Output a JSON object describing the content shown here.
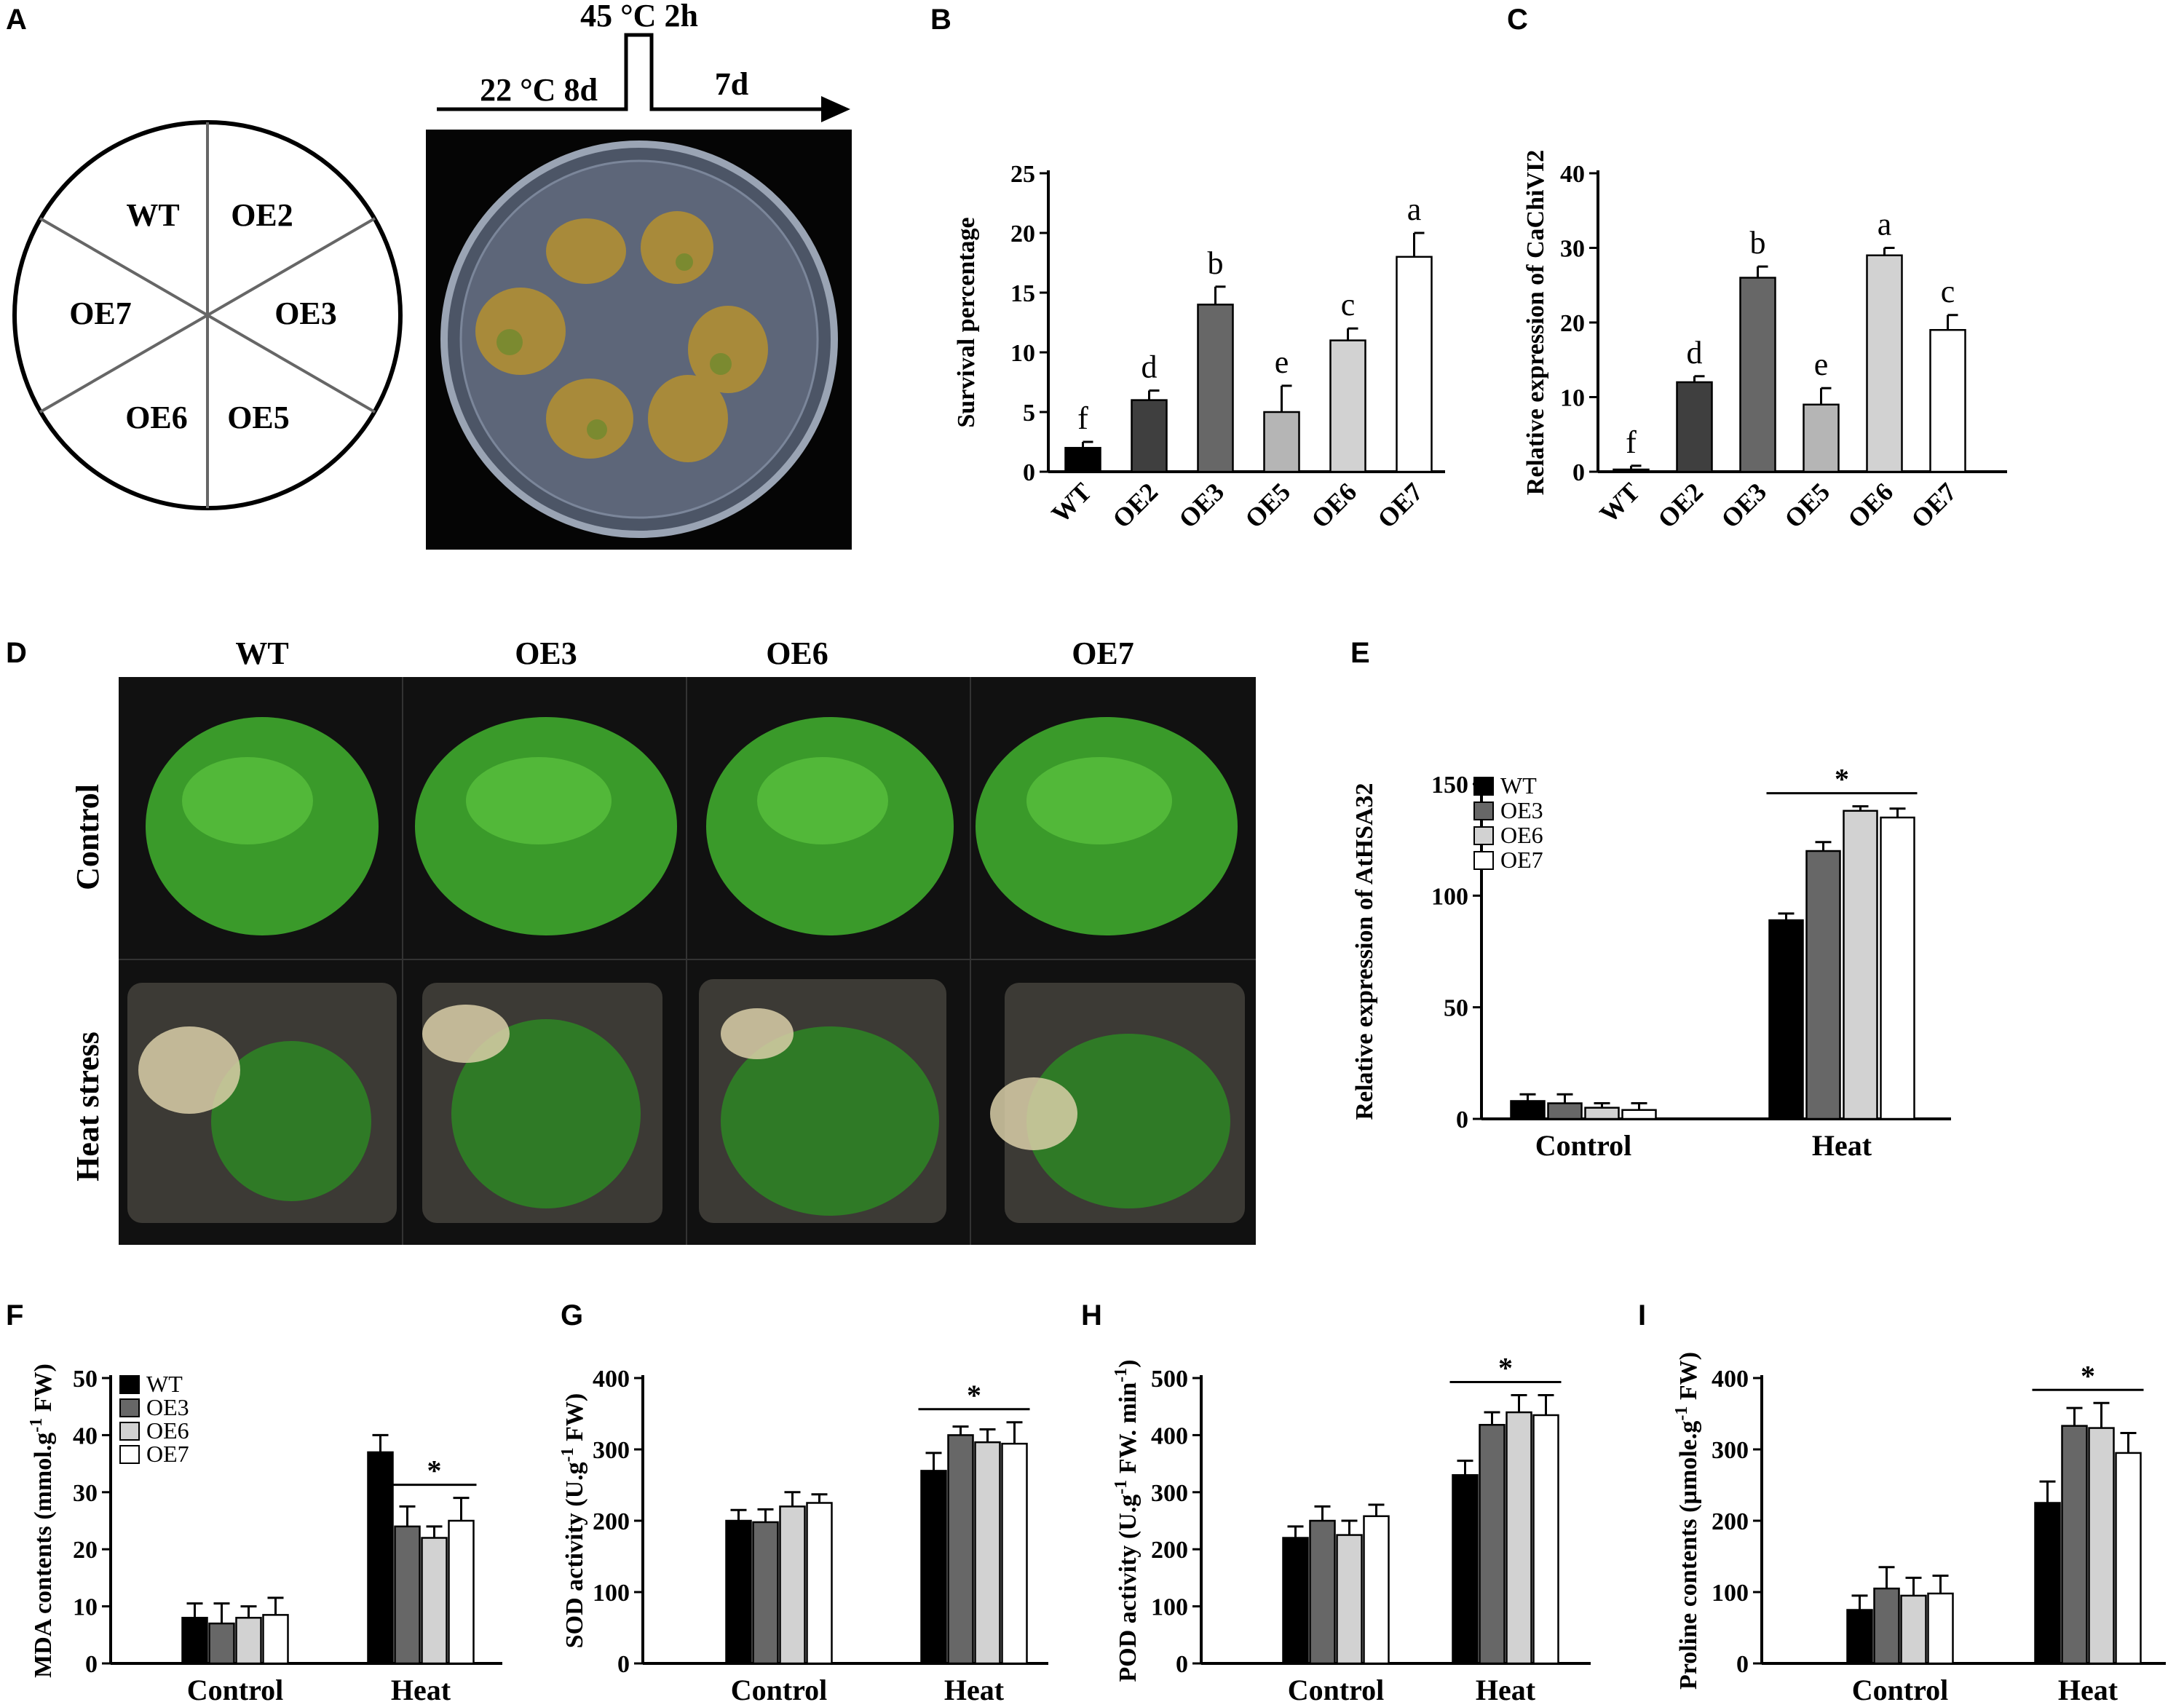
{
  "panel_labels": [
    "A",
    "B",
    "C",
    "D",
    "E",
    "F",
    "G",
    "H",
    "I"
  ],
  "panel_a": {
    "timeline": {
      "step1": "22 °C 8d",
      "step2": "45 °C 2h",
      "step3": "7d"
    },
    "sectors": [
      "WT",
      "OE2",
      "OE3",
      "OE5",
      "OE6",
      "OE7"
    ]
  },
  "panel_d": {
    "columns": [
      "WT",
      "OE3",
      "OE6",
      "OE7"
    ],
    "rows": [
      "Control",
      "Heat stress"
    ]
  },
  "colors": {
    "WT": "#000000",
    "OE2": "#3f3f3f",
    "OE3": "#676767",
    "OE5": "#b5b5b5",
    "OE6": "#d2d2d2",
    "OE7": "#ffffff"
  },
  "chart_data": [
    {
      "id": "B",
      "type": "bar",
      "categories": [
        "WT",
        "OE2",
        "OE3",
        "OE5",
        "OE6",
        "OE7"
      ],
      "values": [
        2,
        6,
        14,
        5,
        11,
        18
      ],
      "errors": [
        0.5,
        0.8,
        1.5,
        2.2,
        1.0,
        2.0
      ],
      "letters": [
        "f",
        "d",
        "b",
        "e",
        "c",
        "a"
      ],
      "ylabel": "Survival percentage",
      "ylim": [
        0,
        25
      ],
      "yticks": [
        0,
        5,
        10,
        15,
        20,
        25
      ]
    },
    {
      "id": "C",
      "type": "bar",
      "categories": [
        "WT",
        "OE2",
        "OE3",
        "OE5",
        "OE6",
        "OE7"
      ],
      "values": [
        0.3,
        12,
        26,
        9,
        29,
        19
      ],
      "errors": [
        0.5,
        0.8,
        1.5,
        2.2,
        1.0,
        2.0
      ],
      "letters": [
        "f",
        "d",
        "b",
        "e",
        "a",
        "c"
      ],
      "ylabel": "Relative expression of CaChiVI2",
      "ylim": [
        0,
        40
      ],
      "yticks": [
        0,
        10,
        20,
        30,
        40
      ]
    },
    {
      "id": "E",
      "type": "bar",
      "groups": [
        "Control",
        "Heat"
      ],
      "legend": [
        "WT",
        "OE3",
        "OE6",
        "OE7"
      ],
      "series": [
        {
          "name": "WT",
          "values": [
            8,
            89
          ],
          "errors": [
            3,
            3
          ]
        },
        {
          "name": "OE3",
          "values": [
            7,
            120
          ],
          "errors": [
            4,
            4
          ]
        },
        {
          "name": "OE6",
          "values": [
            5,
            138
          ],
          "errors": [
            2,
            2
          ]
        },
        {
          "name": "OE7",
          "values": [
            4,
            135
          ],
          "errors": [
            3,
            4
          ]
        }
      ],
      "ylabel": "Relative expression of AtHSA32",
      "ylim": [
        0,
        150
      ],
      "yticks": [
        0,
        50,
        100,
        150
      ],
      "significance": "*",
      "sig_group": "Heat"
    },
    {
      "id": "F",
      "type": "bar",
      "groups": [
        "Control",
        "Heat"
      ],
      "legend": [
        "WT",
        "OE3",
        "OE6",
        "OE7"
      ],
      "series": [
        {
          "name": "WT",
          "values": [
            8,
            37
          ],
          "errors": [
            2.5,
            3
          ]
        },
        {
          "name": "OE3",
          "values": [
            7,
            24
          ],
          "errors": [
            3.5,
            3.5
          ]
        },
        {
          "name": "OE6",
          "values": [
            8,
            22
          ],
          "errors": [
            2,
            2
          ]
        },
        {
          "name": "OE7",
          "values": [
            8.5,
            25
          ],
          "errors": [
            3,
            4
          ]
        }
      ],
      "ylabel": "MDA contents (mmol.g-1 FW)",
      "ylim": [
        0,
        50
      ],
      "yticks": [
        0,
        10,
        20,
        30,
        40,
        50
      ],
      "significance": "*",
      "sig_group": "Heat",
      "sig_from": 1
    },
    {
      "id": "G",
      "type": "bar",
      "groups": [
        "Control",
        "Heat"
      ],
      "series": [
        {
          "name": "WT",
          "values": [
            200,
            270
          ],
          "errors": [
            15,
            25
          ]
        },
        {
          "name": "OE3",
          "values": [
            198,
            320
          ],
          "errors": [
            18,
            12
          ]
        },
        {
          "name": "OE6",
          "values": [
            220,
            310
          ],
          "errors": [
            20,
            18
          ]
        },
        {
          "name": "OE7",
          "values": [
            225,
            308
          ],
          "errors": [
            12,
            30
          ]
        }
      ],
      "ylabel": "SOD activity (U.g-1 FW)",
      "ylim": [
        0,
        400
      ],
      "yticks": [
        0,
        100,
        200,
        300,
        400
      ],
      "significance": "*",
      "sig_group": "Heat"
    },
    {
      "id": "H",
      "type": "bar",
      "groups": [
        "Control",
        "Heat"
      ],
      "series": [
        {
          "name": "WT",
          "values": [
            220,
            330
          ],
          "errors": [
            20,
            25
          ]
        },
        {
          "name": "OE3",
          "values": [
            250,
            418
          ],
          "errors": [
            25,
            22
          ]
        },
        {
          "name": "OE6",
          "values": [
            225,
            440
          ],
          "errors": [
            25,
            30
          ]
        },
        {
          "name": "OE7",
          "values": [
            258,
            435
          ],
          "errors": [
            20,
            35
          ]
        }
      ],
      "ylabel": "POD activity (U.g-1 FW. min-1)",
      "ylim": [
        0,
        500
      ],
      "yticks": [
        0,
        100,
        200,
        300,
        400,
        500
      ],
      "significance": "*",
      "sig_group": "Heat"
    },
    {
      "id": "I",
      "type": "bar",
      "groups": [
        "Control",
        "Heat"
      ],
      "series": [
        {
          "name": "WT",
          "values": [
            75,
            225
          ],
          "errors": [
            20,
            30
          ]
        },
        {
          "name": "OE3",
          "values": [
            105,
            333
          ],
          "errors": [
            30,
            25
          ]
        },
        {
          "name": "OE6",
          "values": [
            95,
            330
          ],
          "errors": [
            25,
            35
          ]
        },
        {
          "name": "OE7",
          "values": [
            98,
            295
          ],
          "errors": [
            25,
            28
          ]
        }
      ],
      "ylabel": "Proline contents (µmole.g-1 FW)",
      "ylim": [
        0,
        400
      ],
      "yticks": [
        0,
        100,
        200,
        300,
        400
      ],
      "significance": "*",
      "sig_group": "Heat"
    }
  ]
}
